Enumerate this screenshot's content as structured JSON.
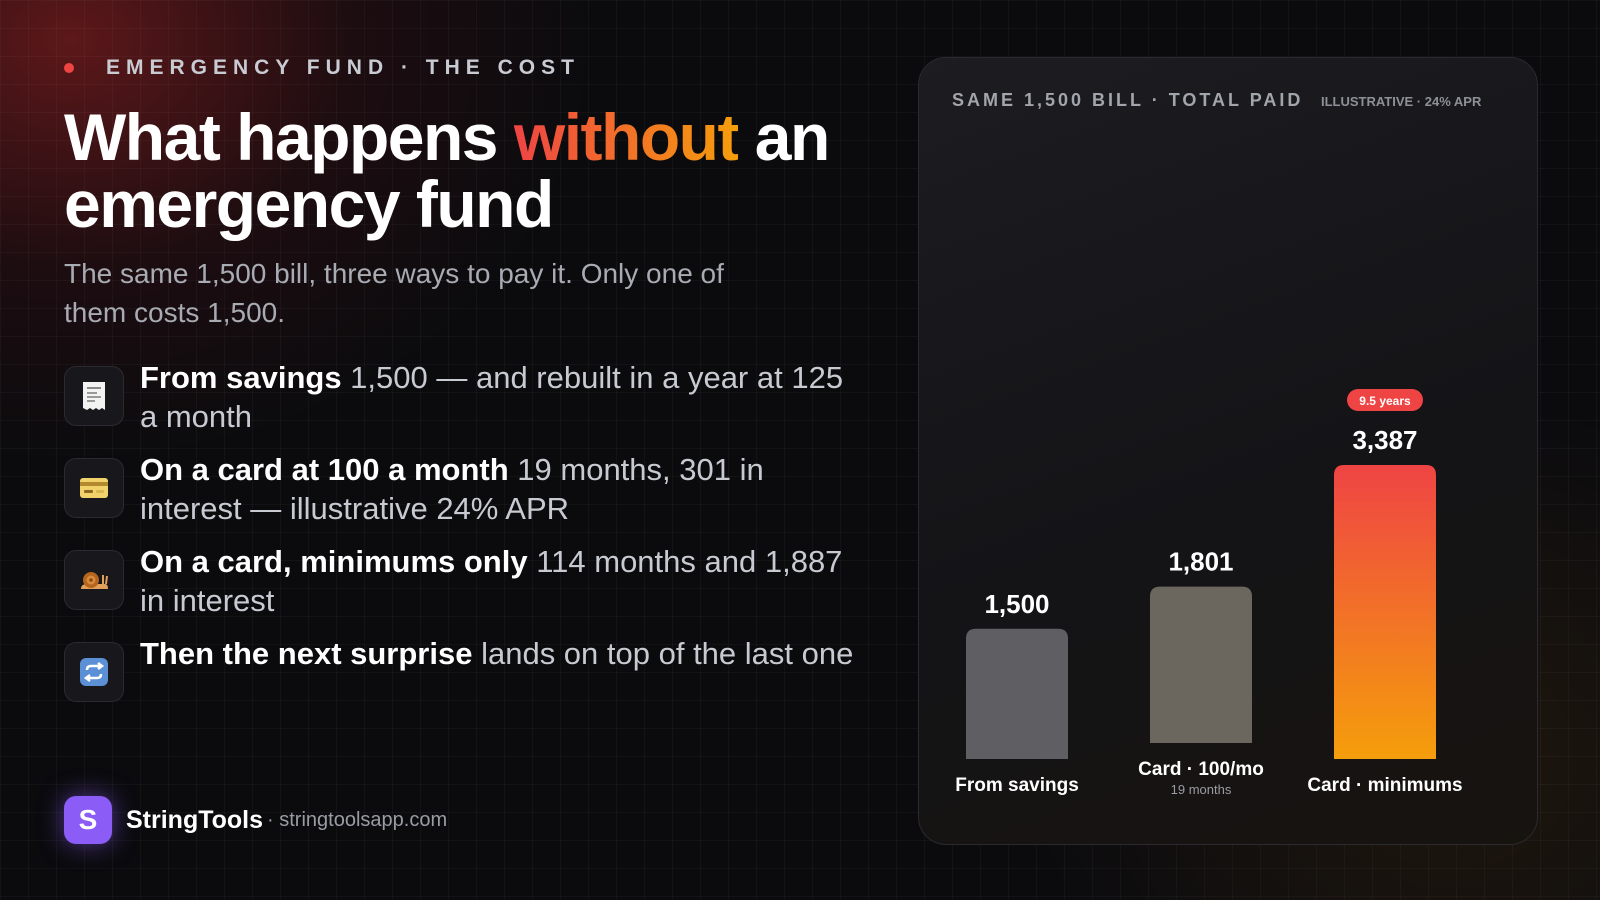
{
  "eyebrow": "EMERGENCY FUND · THE COST",
  "headline": {
    "before": "What happens ",
    "accent": "without",
    "after": " an emergency fund"
  },
  "subtitle": "The same 1,500 bill, three ways to pay it. Only one of them costs 1,500.",
  "points": [
    {
      "icon": "receipt-icon",
      "bold": "From savings",
      "rest": " 1,500 — and rebuilt in a year at 125 a month"
    },
    {
      "icon": "credit-card-icon",
      "bold": "On a card at 100 a month",
      "rest": " 19 months, 301 in interest — illustrative 24% APR"
    },
    {
      "icon": "snail-icon",
      "bold": "On a card, minimums only",
      "rest": " 114 months and 1,887 in interest"
    },
    {
      "icon": "repeat-icon",
      "bold": "Then the next surprise",
      "rest": " lands on top of the last one"
    }
  ],
  "brand": {
    "name": "StringTools",
    "url": "· stringtoolsapp.com",
    "logo_letter": "S"
  },
  "colors": {
    "accent_start": "#ef4444",
    "accent_end": "#f59e0b",
    "bar_gray": "#5e5e63",
    "bar_gray_warm": "#6b675f",
    "badge": "#ef4444",
    "logo": "#8b5cf6"
  },
  "chart_data": {
    "type": "bar",
    "title": "SAME 1,500 BILL · TOTAL PAID",
    "note": "ILLUSTRATIVE · 24% APR",
    "categories": [
      "From savings",
      "Card · 100/mo",
      "Card · minimums"
    ],
    "values": [
      1500,
      1801,
      3387
    ],
    "value_labels": [
      "1,500",
      "1,801",
      "3,387"
    ],
    "sublabels": [
      "",
      "19 months",
      ""
    ],
    "badges": [
      "",
      "",
      "9.5 years"
    ],
    "grid": false,
    "legend": "none"
  }
}
